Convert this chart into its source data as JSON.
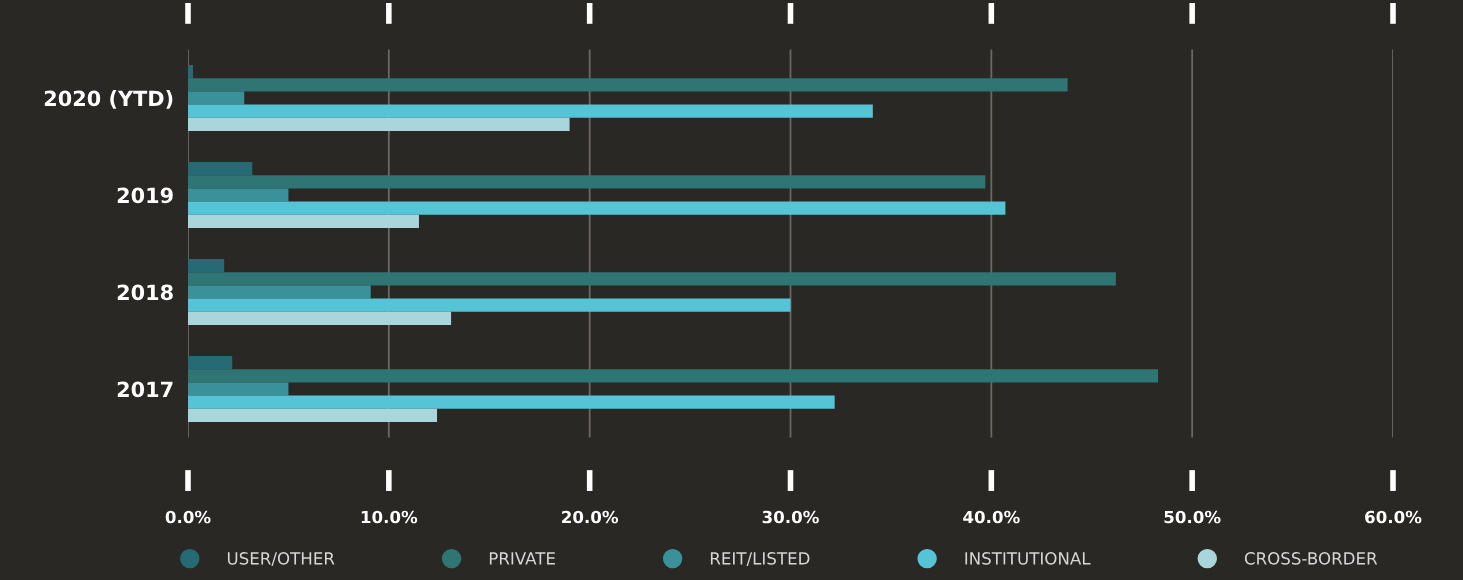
{
  "chart_data": {
    "type": "bar",
    "orientation": "horizontal",
    "categories": [
      "2020 (YTD)",
      "2019",
      "2018",
      "2017"
    ],
    "series": [
      {
        "name": "USER/OTHER",
        "color": "#256a74",
        "values": [
          0.25,
          3.2,
          1.8,
          2.2
        ]
      },
      {
        "name": "PRIVATE",
        "color": "#2e7573",
        "values": [
          43.8,
          39.7,
          46.2,
          48.3
        ]
      },
      {
        "name": "REIT/LISTED",
        "color": "#3b9199",
        "values": [
          2.8,
          5.0,
          9.1,
          5.0
        ]
      },
      {
        "name": "INSTITUTIONAL",
        "color": "#54c4d6",
        "values": [
          34.1,
          40.7,
          30.0,
          32.2
        ]
      },
      {
        "name": "CROSS-BORDER",
        "color": "#a9d6da",
        "values": [
          19.0,
          11.5,
          13.1,
          12.4
        ]
      }
    ],
    "xlim": [
      0,
      60
    ],
    "xticks": [
      {
        "value": 0,
        "label": "0.0%"
      },
      {
        "value": 10,
        "label": "10.0%"
      },
      {
        "value": 20,
        "label": "20.0%"
      },
      {
        "value": 30,
        "label": "30.0%"
      },
      {
        "value": 40,
        "label": "40.0%"
      },
      {
        "value": 50,
        "label": "50.0%"
      },
      {
        "value": 60,
        "label": "60.0%"
      }
    ],
    "grid": "x",
    "legend": "bottom",
    "marker": "circle"
  }
}
